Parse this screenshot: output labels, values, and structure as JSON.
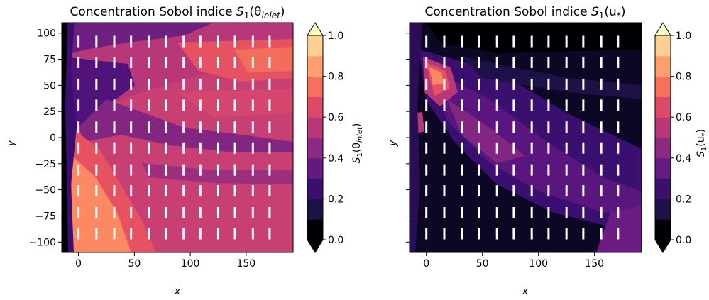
{
  "chart_data": [
    {
      "type": "heatmap",
      "title_main": "Concentration Sobol indice ",
      "title_sym": "S",
      "title_sub": "1",
      "title_arg": "(θ",
      "title_arg_sub": "inlet",
      "title_close": ")",
      "xlabel": "x",
      "ylabel": "y",
      "xlim": [
        -15,
        192
      ],
      "ylim": [
        -110,
        110
      ],
      "xticks": [
        0,
        50,
        100,
        150
      ],
      "xtick_labels": [
        "0",
        "50",
        "100",
        "150"
      ],
      "yticks": [
        -100,
        -75,
        -50,
        -25,
        0,
        25,
        50,
        75,
        100
      ],
      "ytick_labels": [
        "−100",
        "−75",
        "−50",
        "−25",
        "0",
        "25",
        "50",
        "75",
        "100"
      ],
      "colorbar": {
        "label_sym": "S",
        "label_sub": "1",
        "label_arg": "(θ",
        "label_arg_sub": "inlet",
        "label_close": ")",
        "ticks": [
          0.0,
          0.2,
          0.4,
          0.6,
          0.8,
          1.0
        ],
        "tick_labels": [
          "0.0",
          "0.2",
          "0.4",
          "0.6",
          "0.8",
          "1.0"
        ],
        "extend": "both"
      },
      "field_description": "high (~0.6-0.8) in lower-left near source, moderate (~0.5-0.6) over most of domain, lower (~0.3-0.4) bands in upper-left region",
      "sensor_x": [
        0,
        16,
        32,
        47,
        63,
        78,
        94,
        109,
        125,
        140,
        156,
        171
      ],
      "sensor_y": [
        -92,
        -72,
        -51,
        -31,
        -10,
        10,
        31,
        51,
        72,
        92
      ]
    },
    {
      "type": "heatmap",
      "title_main": "Concentration Sobol indice ",
      "title_sym": "S",
      "title_sub": "1",
      "title_arg": "(u",
      "title_arg_sub": "*",
      "title_close": ")",
      "xlabel": "x",
      "ylabel": "y",
      "xlim": [
        -15,
        192
      ],
      "ylim": [
        -110,
        110
      ],
      "xticks": [
        0,
        50,
        100,
        150
      ],
      "xtick_labels": [
        "0",
        "50",
        "100",
        "150"
      ],
      "yticks": [
        -100,
        -75,
        -50,
        -25,
        0,
        25,
        50,
        75,
        100
      ],
      "ytick_labels": [],
      "colorbar": {
        "label_sym": "S",
        "label_sub": "1",
        "label_arg": "(u",
        "label_arg_sub": "*",
        "label_close": ")",
        "ticks": [
          0.0,
          0.2,
          0.4,
          0.6,
          0.8,
          1.0
        ],
        "tick_labels": [
          "0.0",
          "0.2",
          "0.4",
          "0.6",
          "0.8",
          "1.0"
        ],
        "extend": "both"
      },
      "field_description": "mostly low (~0.0-0.2), purple diagonal band (~0.3-0.4) from upper-left to lower-right, hot spot (~0.7-0.8) near x~10, y~55",
      "sensor_x": [
        0,
        16,
        32,
        47,
        63,
        78,
        94,
        109,
        125,
        140,
        156,
        171
      ],
      "sensor_y": [
        -92,
        -72,
        -51,
        -31,
        -10,
        10,
        31,
        51,
        72,
        92
      ]
    }
  ],
  "colors": {
    "levels": [
      "#000004",
      "#1d1147",
      "#51127c",
      "#822681",
      "#b73779",
      "#e75263",
      "#fc8961",
      "#fec287",
      "#fcfdbf"
    ],
    "ext_under": "#000004",
    "ext_over": "#fcfdbf",
    "sensor": "#ffffff"
  }
}
